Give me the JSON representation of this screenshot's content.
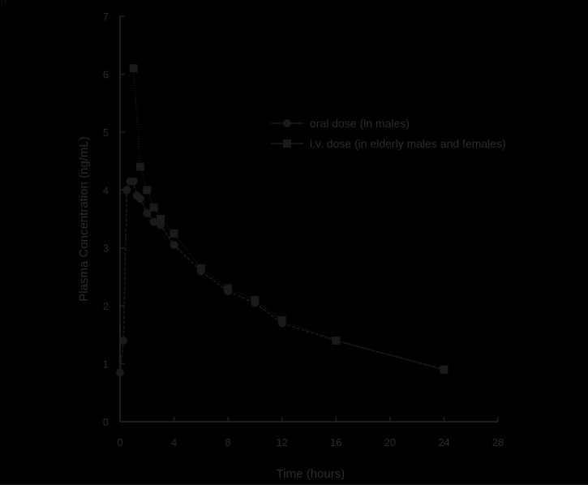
{
  "corner_label": "0",
  "chart_data": {
    "type": "line",
    "title": "",
    "xlabel": "Time (hours)",
    "ylabel": "Plasma Concentration (ng/mL)",
    "xlim": [
      0,
      28
    ],
    "ylim": [
      0,
      7
    ],
    "x_ticks": [
      0,
      4,
      8,
      12,
      16,
      20,
      24,
      28
    ],
    "y_ticks": [
      0,
      1,
      2,
      3,
      4,
      5,
      6,
      7
    ],
    "grid": false,
    "legend_position": "top-right",
    "series": [
      {
        "name": "oral dose (in males)",
        "marker": "circle",
        "x": [
          0,
          0.25,
          0.5,
          0.75,
          1,
          1.25,
          1.5,
          2,
          2.5,
          3,
          4,
          6,
          8,
          10,
          12,
          16,
          24
        ],
        "y": [
          0.85,
          1.4,
          4.0,
          4.15,
          4.15,
          3.9,
          3.85,
          3.6,
          3.45,
          3.4,
          3.05,
          2.6,
          2.25,
          2.05,
          1.7,
          1.4,
          0.9
        ]
      },
      {
        "name": "i.v. dose (in elderly males and females)",
        "marker": "square",
        "x": [
          1,
          1.5,
          2,
          2.5,
          3,
          4,
          6,
          8,
          10,
          12,
          16,
          24
        ],
        "y": [
          6.1,
          4.4,
          4.0,
          3.7,
          3.5,
          3.25,
          2.65,
          2.3,
          2.1,
          1.75,
          1.4,
          0.9
        ]
      }
    ]
  }
}
